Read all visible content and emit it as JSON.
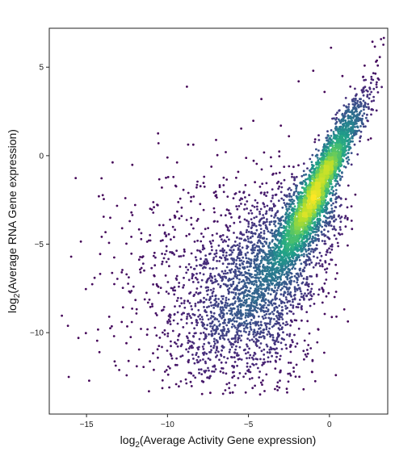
{
  "chart_data": {
    "type": "scatter",
    "title": "",
    "xlabel": {
      "prefix": "log",
      "subscript": "2",
      "rest": "(Average Activity Gene expression)"
    },
    "ylabel": {
      "prefix": "log",
      "subscript": "2",
      "rest": "(Average RNA Gene expression)"
    },
    "xlim": [
      -17.3,
      3.6
    ],
    "ylim": [
      -14.6,
      7.2
    ],
    "xticks": [
      -15,
      -10,
      -5,
      0
    ],
    "yticks": [
      -10,
      -5,
      0,
      5
    ],
    "xtick_labels": [
      "−15",
      "−10",
      "−5",
      "0"
    ],
    "ytick_labels": [
      "−10",
      "−5",
      "0",
      "5"
    ],
    "grid": false,
    "legend": "none",
    "colormap": "viridis (point density)",
    "colors": {
      "low_density": "#440154",
      "mid_density": "#21908c",
      "high_density": "#fde725"
    },
    "density_description": "dense elongated cloud centered near x=-0.5, y=-1.5, tail toward lower-left",
    "points": [
      [
        -16.1,
        -12.5
      ],
      [
        -15.5,
        -10.3
      ],
      [
        -14.5,
        -6.9
      ],
      [
        -14.2,
        -11.1
      ],
      [
        -13.6,
        -9.1
      ],
      [
        -13.3,
        -10.2
      ],
      [
        -12.8,
        -4.1
      ],
      [
        -12.6,
        -2.4
      ],
      [
        -12.2,
        -9.4
      ],
      [
        -11.9,
        -11.9
      ],
      [
        -11.5,
        -6.1
      ],
      [
        -11.2,
        -8.3
      ],
      [
        -10.6,
        -2.8
      ],
      [
        -10.3,
        -12.7
      ],
      [
        -10.0,
        -0.1
      ],
      [
        -9.6,
        -4.6
      ],
      [
        -9.3,
        -7.4
      ],
      [
        -8.8,
        3.9
      ],
      [
        -8.6,
        -10.5
      ],
      [
        -8.2,
        -1.8
      ],
      [
        -7.9,
        -6.2
      ],
      [
        -7.5,
        -12.0
      ],
      [
        -7.1,
        -3.2
      ],
      [
        -6.8,
        -9.0
      ],
      [
        -6.4,
        0.2
      ],
      [
        -6.1,
        -6.6
      ],
      [
        -5.7,
        -11.3
      ],
      [
        -5.3,
        -2.1
      ],
      [
        -4.9,
        -7.9
      ],
      [
        -4.6,
        -13.0
      ],
      [
        -4.2,
        3.2
      ],
      [
        -3.9,
        -4.9
      ],
      [
        -3.4,
        -10.6
      ],
      [
        -3.0,
        1.7
      ],
      [
        -2.6,
        -8.6
      ],
      [
        -2.2,
        -12.2
      ],
      [
        -1.9,
        4.2
      ],
      [
        -1.4,
        -5.6
      ],
      [
        -1.0,
        4.8
      ],
      [
        -0.7,
        -9.8
      ],
      [
        -0.3,
        3.6
      ],
      [
        0.1,
        6.1
      ],
      [
        0.4,
        -12.4
      ],
      [
        0.8,
        4.5
      ],
      [
        1.2,
        2.9
      ],
      [
        1.6,
        -2.2
      ],
      [
        2.0,
        3.7
      ],
      [
        2.4,
        0.9
      ],
      [
        0.9,
        1.8
      ],
      [
        -2.5,
        1.1
      ],
      [
        -3.6,
        -0.6
      ],
      [
        -5.0,
        -4.0
      ],
      [
        -6.6,
        -5.4
      ],
      [
        -1.6,
        -13.2
      ],
      [
        -0.2,
        -1.5
      ]
    ]
  }
}
